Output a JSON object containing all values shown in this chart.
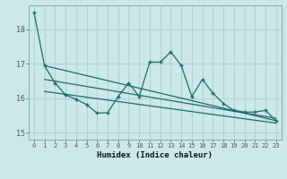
{
  "xlabel": "Humidex (Indice chaleur)",
  "bg_color": "#cce8e8",
  "grid_color": "#b0d4d4",
  "line_color": "#1a6b6b",
  "xlim": [
    -0.5,
    23.5
  ],
  "ylim": [
    14.8,
    18.7
  ],
  "yticks": [
    15,
    16,
    17,
    18
  ],
  "xticks": [
    0,
    1,
    2,
    3,
    4,
    5,
    6,
    7,
    8,
    9,
    10,
    11,
    12,
    13,
    14,
    15,
    16,
    17,
    18,
    19,
    20,
    21,
    22,
    23
  ],
  "main_x": [
    0,
    1,
    2,
    3,
    4,
    5,
    6,
    7,
    8,
    9,
    10,
    11,
    12,
    13,
    14,
    15,
    16,
    17,
    18,
    19,
    20,
    21,
    22,
    23
  ],
  "main_y": [
    18.5,
    16.95,
    16.45,
    16.1,
    15.97,
    15.82,
    15.57,
    15.58,
    16.05,
    16.45,
    16.05,
    17.05,
    17.05,
    17.35,
    16.95,
    16.05,
    16.55,
    16.15,
    15.85,
    15.65,
    15.6,
    15.6,
    15.65,
    15.35
  ],
  "trend1_x": [
    1,
    23
  ],
  "trend1_y": [
    16.95,
    15.35
  ],
  "trend2_x": [
    1,
    23
  ],
  "trend2_y": [
    16.55,
    15.42
  ],
  "trend3_x": [
    1,
    23
  ],
  "trend3_y": [
    16.2,
    15.28
  ]
}
